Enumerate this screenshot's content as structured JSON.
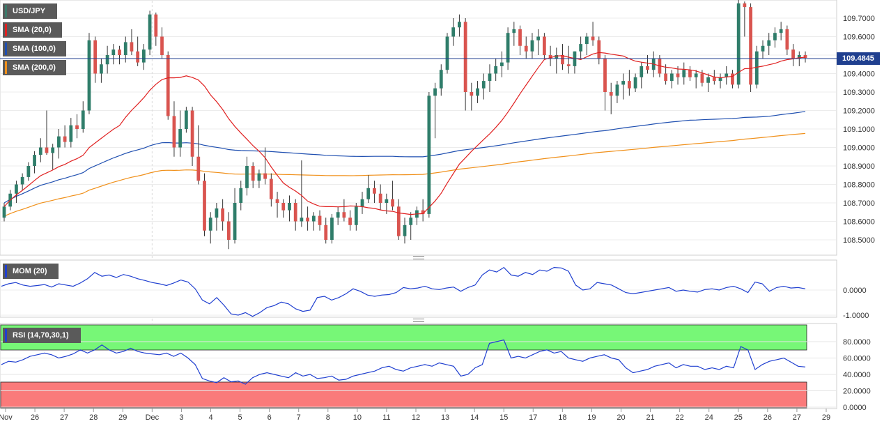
{
  "instrument": "USD/JPY",
  "indicators": [
    {
      "label": "SMA (20,0)",
      "color": "#e02020"
    },
    {
      "label": "SMA (100,0)",
      "color": "#1f4fb0"
    },
    {
      "label": "SMA (200,0)",
      "color": "#f0901a"
    }
  ],
  "current_price": "109.4845",
  "mom_label": "MOM (20)",
  "rsi_label": "RSI (14,70,30,1)",
  "chart_data": {
    "type": "candlestick",
    "price_axis": {
      "ticks": [
        "109.7000",
        "109.6000",
        "109.5000",
        "109.4000",
        "109.3000",
        "109.2000",
        "109.1000",
        "109.0000",
        "108.9000",
        "108.8000",
        "108.7000",
        "108.6000",
        "108.5000"
      ],
      "ylim": [
        108.45,
        109.8
      ]
    },
    "mom_axis": {
      "ticks": [
        "0.0000",
        "-1.0000"
      ]
    },
    "rsi_axis": {
      "ticks": [
        "80.0000",
        "60.0000",
        "40.0000",
        "20.0000",
        "0.0000"
      ],
      "overbought": 70,
      "oversold": 30
    },
    "x_ticks": [
      "Nov",
      "26",
      "27",
      "28",
      "29",
      "Dec",
      "3",
      "4",
      "5",
      "6",
      "7",
      "8",
      "10",
      "11",
      "12",
      "13",
      "14",
      "15",
      "17",
      "18",
      "19",
      "20",
      "21",
      "22",
      "24",
      "25",
      "26",
      "27",
      "29"
    ],
    "candles": [
      [
        108.62,
        108.7,
        108.6,
        108.68
      ],
      [
        108.68,
        108.77,
        108.66,
        108.75
      ],
      [
        108.75,
        108.82,
        108.7,
        108.8
      ],
      [
        108.8,
        108.86,
        108.77,
        108.84
      ],
      [
        108.84,
        108.92,
        108.82,
        108.9
      ],
      [
        108.9,
        108.98,
        108.86,
        108.96
      ],
      [
        108.96,
        109.05,
        108.92,
        109.0
      ],
      [
        109.0,
        109.2,
        108.96,
        108.97
      ],
      [
        108.97,
        109.02,
        108.88,
        109.0
      ],
      [
        109.0,
        109.1,
        108.94,
        109.06
      ],
      [
        109.06,
        109.12,
        109.0,
        109.03
      ],
      [
        109.03,
        109.16,
        109.0,
        109.12
      ],
      [
        109.12,
        109.18,
        109.05,
        109.1
      ],
      [
        109.1,
        109.25,
        109.08,
        109.2
      ],
      [
        109.2,
        109.62,
        109.18,
        109.58
      ],
      [
        109.58,
        109.6,
        109.35,
        109.4
      ],
      [
        109.4,
        109.48,
        109.35,
        109.45
      ],
      [
        109.45,
        109.55,
        109.4,
        109.5
      ],
      [
        109.5,
        109.56,
        109.45,
        109.53
      ],
      [
        109.53,
        109.55,
        109.45,
        109.5
      ],
      [
        109.5,
        109.6,
        109.46,
        109.57
      ],
      [
        109.57,
        109.64,
        109.5,
        109.52
      ],
      [
        109.52,
        109.6,
        109.44,
        109.46
      ],
      [
        109.46,
        109.56,
        109.42,
        109.53
      ],
      [
        109.53,
        109.74,
        109.5,
        109.72
      ],
      [
        109.72,
        109.73,
        109.55,
        109.6
      ],
      [
        109.6,
        109.65,
        109.48,
        109.5
      ],
      [
        109.5,
        109.52,
        109.15,
        109.17
      ],
      [
        109.17,
        109.25,
        108.95,
        109.0
      ],
      [
        109.0,
        109.2,
        108.95,
        109.1
      ],
      [
        109.1,
        109.22,
        109.08,
        109.2
      ],
      [
        109.2,
        109.22,
        108.9,
        108.95
      ],
      [
        108.95,
        109.12,
        108.8,
        108.82
      ],
      [
        108.82,
        108.86,
        108.52,
        108.55
      ],
      [
        108.55,
        108.65,
        108.48,
        108.62
      ],
      [
        108.62,
        108.7,
        108.55,
        108.67
      ],
      [
        108.67,
        108.72,
        108.55,
        108.6
      ],
      [
        108.6,
        108.65,
        108.45,
        108.5
      ],
      [
        108.5,
        108.78,
        108.48,
        108.7
      ],
      [
        108.7,
        108.82,
        108.66,
        108.78
      ],
      [
        108.78,
        108.95,
        108.74,
        108.9
      ],
      [
        108.9,
        108.92,
        108.78,
        108.82
      ],
      [
        108.82,
        108.88,
        108.78,
        108.86
      ],
      [
        108.86,
        109.0,
        108.8,
        108.83
      ],
      [
        108.83,
        108.86,
        108.68,
        108.72
      ],
      [
        108.72,
        108.76,
        108.62,
        108.7
      ],
      [
        108.7,
        108.72,
        108.62,
        108.66
      ],
      [
        108.66,
        108.74,
        108.6,
        108.7
      ],
      [
        108.7,
        108.72,
        108.55,
        108.6
      ],
      [
        108.6,
        108.93,
        108.57,
        108.62
      ],
      [
        108.62,
        108.68,
        108.55,
        108.6
      ],
      [
        108.6,
        108.65,
        108.55,
        108.63
      ],
      [
        108.63,
        108.66,
        108.55,
        108.58
      ],
      [
        108.58,
        108.62,
        108.48,
        108.5
      ],
      [
        108.5,
        108.64,
        108.48,
        108.62
      ],
      [
        108.62,
        108.68,
        108.58,
        108.65
      ],
      [
        108.65,
        108.72,
        108.6,
        108.62
      ],
      [
        108.62,
        108.66,
        108.55,
        108.58
      ],
      [
        108.58,
        108.7,
        108.55,
        108.68
      ],
      [
        108.68,
        108.76,
        108.64,
        108.72
      ],
      [
        108.72,
        108.85,
        108.7,
        108.78
      ],
      [
        108.78,
        108.82,
        108.7,
        108.75
      ],
      [
        108.75,
        108.8,
        108.66,
        108.7
      ],
      [
        108.7,
        108.75,
        108.64,
        108.72
      ],
      [
        108.72,
        108.82,
        108.66,
        108.68
      ],
      [
        108.68,
        108.72,
        108.5,
        108.52
      ],
      [
        108.52,
        108.62,
        108.48,
        108.58
      ],
      [
        108.58,
        108.65,
        108.5,
        108.62
      ],
      [
        108.62,
        108.68,
        108.58,
        108.66
      ],
      [
        108.66,
        108.72,
        108.6,
        108.64
      ],
      [
        108.64,
        109.3,
        108.62,
        109.28
      ],
      [
        109.28,
        109.35,
        109.05,
        109.32
      ],
      [
        109.32,
        109.45,
        109.28,
        109.42
      ],
      [
        109.42,
        109.62,
        109.4,
        109.6
      ],
      [
        109.6,
        109.7,
        109.55,
        109.65
      ],
      [
        109.65,
        109.72,
        109.6,
        109.68
      ],
      [
        109.68,
        109.7,
        109.2,
        109.3
      ],
      [
        109.3,
        109.35,
        109.2,
        109.28
      ],
      [
        109.28,
        109.36,
        109.24,
        109.32
      ],
      [
        109.32,
        109.4,
        109.26,
        109.36
      ],
      [
        109.36,
        109.45,
        109.3,
        109.4
      ],
      [
        109.4,
        109.48,
        109.36,
        109.44
      ],
      [
        109.44,
        109.52,
        109.38,
        109.46
      ],
      [
        109.46,
        109.65,
        109.42,
        109.62
      ],
      [
        109.62,
        109.68,
        109.55,
        109.64
      ],
      [
        109.64,
        109.66,
        109.5,
        109.55
      ],
      [
        109.55,
        109.6,
        109.48,
        109.52
      ],
      [
        109.52,
        109.62,
        109.48,
        109.58
      ],
      [
        109.58,
        109.64,
        109.5,
        109.6
      ],
      [
        109.6,
        109.62,
        109.48,
        109.5
      ],
      [
        109.5,
        109.55,
        109.44,
        109.48
      ],
      [
        109.48,
        109.54,
        109.4,
        109.5
      ],
      [
        109.5,
        109.56,
        109.42,
        109.45
      ],
      [
        109.45,
        109.55,
        109.4,
        109.44
      ],
      [
        109.44,
        109.52,
        109.4,
        109.52
      ],
      [
        109.52,
        109.6,
        109.48,
        109.56
      ],
      [
        109.56,
        109.62,
        109.5,
        109.6
      ],
      [
        109.6,
        109.68,
        109.55,
        109.58
      ],
      [
        109.58,
        109.6,
        109.45,
        109.48
      ],
      [
        109.48,
        109.5,
        109.2,
        109.3
      ],
      [
        109.3,
        109.35,
        109.18,
        109.28
      ],
      [
        109.28,
        109.36,
        109.24,
        109.34
      ],
      [
        109.34,
        109.4,
        109.26,
        109.36
      ],
      [
        109.36,
        109.42,
        109.28,
        109.32
      ],
      [
        109.32,
        109.4,
        109.3,
        109.38
      ],
      [
        109.38,
        109.46,
        109.32,
        109.44
      ],
      [
        109.44,
        109.5,
        109.4,
        109.42
      ],
      [
        109.42,
        109.52,
        109.38,
        109.48
      ],
      [
        109.48,
        109.5,
        109.38,
        109.4
      ],
      [
        109.4,
        109.45,
        109.34,
        109.36
      ],
      [
        109.36,
        109.42,
        109.32,
        109.4
      ],
      [
        109.4,
        109.44,
        109.34,
        109.38
      ],
      [
        109.38,
        109.46,
        109.34,
        109.42
      ],
      [
        109.42,
        109.44,
        109.36,
        109.38
      ],
      [
        109.38,
        109.42,
        109.32,
        109.4
      ],
      [
        109.4,
        109.42,
        109.33,
        109.35
      ],
      [
        109.35,
        109.4,
        109.3,
        109.38
      ],
      [
        109.38,
        109.42,
        109.34,
        109.36
      ],
      [
        109.36,
        109.4,
        109.32,
        109.38
      ],
      [
        109.38,
        109.44,
        109.34,
        109.4
      ],
      [
        109.4,
        109.42,
        109.32,
        109.34
      ],
      [
        109.34,
        109.8,
        109.32,
        109.78
      ],
      [
        109.78,
        109.79,
        109.6,
        109.76
      ],
      [
        109.76,
        109.78,
        109.3,
        109.34
      ],
      [
        109.34,
        109.55,
        109.32,
        109.52
      ],
      [
        109.52,
        109.58,
        109.48,
        109.55
      ],
      [
        109.55,
        109.62,
        109.5,
        109.58
      ],
      [
        109.58,
        109.65,
        109.54,
        109.62
      ],
      [
        109.62,
        109.68,
        109.58,
        109.64
      ],
      [
        109.64,
        109.66,
        109.5,
        109.53
      ],
      [
        109.53,
        109.56,
        109.44,
        109.48
      ],
      [
        109.48,
        109.52,
        109.44,
        109.5
      ],
      [
        109.5,
        109.52,
        109.46,
        109.4845
      ]
    ],
    "mom_values": [
      0.15,
      0.25,
      0.3,
      0.2,
      0.15,
      0.18,
      0.22,
      0.12,
      0.25,
      0.2,
      0.15,
      0.28,
      0.45,
      0.7,
      0.55,
      0.6,
      0.5,
      0.62,
      0.55,
      0.45,
      0.38,
      0.3,
      0.25,
      0.18,
      0.28,
      0.4,
      0.32,
      0.05,
      -0.4,
      -0.55,
      -0.3,
      -0.6,
      -0.95,
      -1.0,
      -0.9,
      -1.05,
      -0.9,
      -0.7,
      -0.62,
      -0.48,
      -0.55,
      -0.75,
      -0.85,
      -0.8,
      -0.3,
      -0.25,
      -0.4,
      -0.3,
      -0.15,
      0.05,
      -0.05,
      -0.2,
      -0.25,
      -0.2,
      -0.18,
      -0.1,
      0.1,
      0.05,
      0.08,
      0.15,
      0.05,
      0.02,
      0.08,
      0.12,
      -0.05,
      0.1,
      0.2,
      0.6,
      0.8,
      0.72,
      0.9,
      0.6,
      0.55,
      0.7,
      0.62,
      0.8,
      0.75,
      0.9,
      0.88,
      0.75,
      0.2,
      0.0,
      0.05,
      0.3,
      0.25,
      0.2,
      0.05,
      -0.1,
      -0.15,
      -0.1,
      -0.05,
      0.0,
      0.05,
      0.1,
      -0.05,
      0.0,
      -0.05,
      -0.08,
      0.02,
      0.05,
      0.0,
      0.1,
      0.15,
      0.05,
      -0.1,
      0.32,
      0.25,
      -0.05,
      0.1,
      0.15,
      0.08,
      0.1,
      0.05
    ],
    "rsi_values": [
      52,
      56,
      55,
      58,
      62,
      64,
      66,
      64,
      60,
      62,
      65,
      70,
      66,
      70,
      76,
      70,
      66,
      68,
      72,
      68,
      66,
      65,
      64,
      66,
      62,
      66,
      60,
      52,
      35,
      32,
      30,
      36,
      31,
      32,
      28,
      36,
      40,
      42,
      40,
      38,
      36,
      42,
      38,
      40,
      35,
      36,
      38,
      33,
      34,
      38,
      40,
      42,
      44,
      48,
      50,
      46,
      44,
      48,
      50,
      52,
      50,
      54,
      52,
      50,
      38,
      40,
      48,
      52,
      78,
      80,
      82,
      60,
      62,
      60,
      64,
      68,
      70,
      66,
      68,
      60,
      58,
      56,
      60,
      62,
      64,
      60,
      58,
      48,
      42,
      44,
      46,
      50,
      52,
      54,
      48,
      52,
      50,
      50,
      46,
      48,
      46,
      50,
      48,
      74,
      70,
      46,
      52,
      56,
      58,
      60,
      55,
      50,
      49
    ]
  }
}
